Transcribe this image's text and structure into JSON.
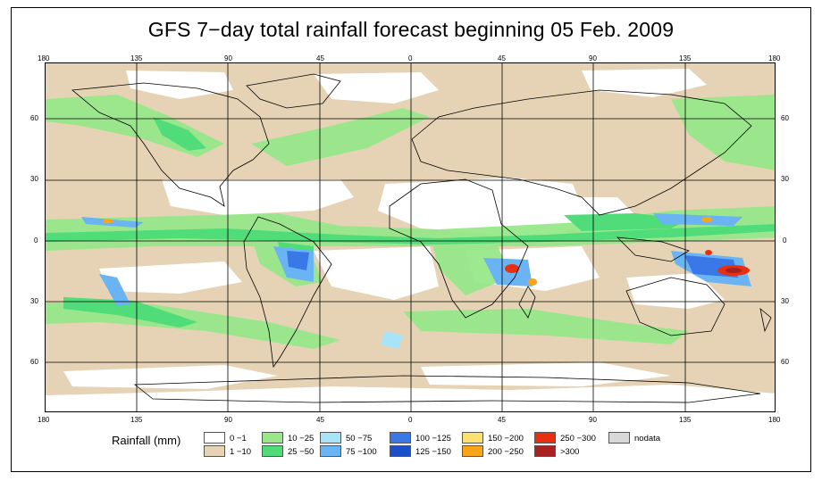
{
  "title": "GFS 7−day total rainfall forecast beginning 05 Feb. 2009",
  "map": {
    "projection": "equirectangular world map",
    "top_ticks": [
      "180",
      "135",
      "90",
      "45",
      "0",
      "45",
      "90",
      "135",
      "180"
    ],
    "bottom_ticks": [
      "180",
      "135",
      "90",
      "45",
      "0",
      "45",
      "90",
      "135",
      "180"
    ],
    "left_ticks": [
      "60",
      "30",
      "0",
      "30",
      "60"
    ],
    "right_ticks": [
      "60",
      "30",
      "0",
      "30",
      "60"
    ]
  },
  "legend": {
    "title": "Rainfall (mm)",
    "items": [
      {
        "label": "0 −1",
        "color": "#ffffff"
      },
      {
        "label": "1 −10",
        "color": "#e6d3b5"
      },
      {
        "label": "10 −25",
        "color": "#98e88a"
      },
      {
        "label": "25 −50",
        "color": "#50dc78"
      },
      {
        "label": "50 −75",
        "color": "#a8e4f8"
      },
      {
        "label": "75 −100",
        "color": "#6ab4f4"
      },
      {
        "label": "100 −125",
        "color": "#3a78e8"
      },
      {
        "label": "125 −150",
        "color": "#1c50c8"
      },
      {
        "label": "150 −200",
        "color": "#fce070"
      },
      {
        "label": "200 −250",
        "color": "#f8a418"
      },
      {
        "label": "250 −300",
        "color": "#e83010"
      },
      {
        "label": ">300",
        "color": "#a82020"
      },
      {
        "label": "nodata",
        "color": "#d8d8d8"
      }
    ]
  }
}
